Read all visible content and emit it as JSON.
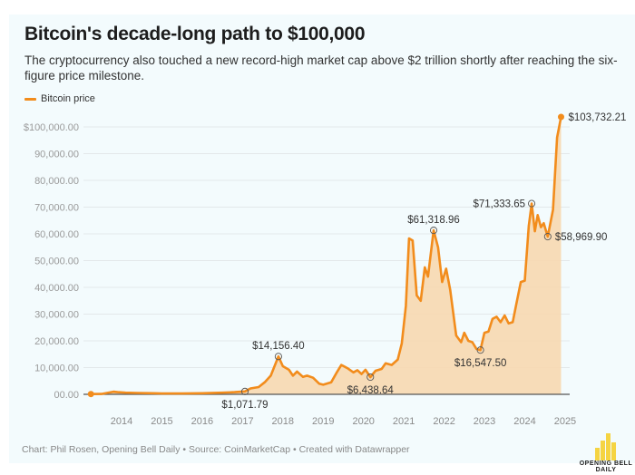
{
  "header": {
    "title": "Bitcoin's decade-long path to $100,000",
    "subtitle": "The cryptocurrency also touched a new record-high market cap above $2 trillion shortly after reaching the six-figure price milestone."
  },
  "legend": {
    "label": "Bitcoin price"
  },
  "footer": {
    "credit": "Chart: Phil Rosen, Opening Bell Daily • Source: CoinMarketCap • Created with Datawrapper",
    "logo_line1": "OPENING BELL",
    "logo_line2": "DAILY"
  },
  "colors": {
    "line": "#f28c1c",
    "fill": "#f7d8b0",
    "logo": "#f5d442"
  },
  "chart_data": {
    "type": "area",
    "title": "Bitcoin's decade-long path to $100,000",
    "xlabel": "",
    "ylabel": "",
    "xlim": [
      2013.2,
      2025.1
    ],
    "ylim": [
      0,
      100000
    ],
    "grid": true,
    "legend_position": "top-left",
    "x_ticks": [
      2014,
      2015,
      2016,
      2017,
      2018,
      2019,
      2020,
      2021,
      2022,
      2023,
      2024,
      2025
    ],
    "x_tick_labels": [
      "2014",
      "2015",
      "2016",
      "2017",
      "2018",
      "2019",
      "2020",
      "2021",
      "2022",
      "2023",
      "2024",
      "2025"
    ],
    "y_ticks": [
      0,
      10000,
      20000,
      30000,
      40000,
      50000,
      60000,
      70000,
      80000,
      90000,
      100000
    ],
    "y_tick_labels": [
      "00.00",
      "10,000.00",
      "20,000.00",
      "30,000.00",
      "40,000.00",
      "50,000.00",
      "60,000.00",
      "70,000.00",
      "80,000.00",
      "90,000.00",
      "$100,000.00"
    ],
    "series": [
      {
        "name": "Bitcoin price",
        "x": [
          2013.24,
          2013.5,
          2013.8,
          2013.9,
          2014.1,
          2014.4,
          2014.8,
          2015.0,
          2015.5,
          2016.0,
          2016.5,
          2016.8,
          2017.06,
          2017.2,
          2017.4,
          2017.55,
          2017.7,
          2017.89,
          2018.0,
          2018.15,
          2018.25,
          2018.35,
          2018.5,
          2018.6,
          2018.75,
          2018.9,
          2019.0,
          2019.2,
          2019.35,
          2019.45,
          2019.6,
          2019.75,
          2019.85,
          2019.95,
          2020.05,
          2020.17,
          2020.3,
          2020.45,
          2020.55,
          2020.7,
          2020.85,
          2020.95,
          2021.05,
          2021.13,
          2021.22,
          2021.32,
          2021.42,
          2021.52,
          2021.6,
          2021.74,
          2021.85,
          2021.95,
          2022.05,
          2022.15,
          2022.3,
          2022.42,
          2022.5,
          2022.6,
          2022.7,
          2022.8,
          2022.9,
          2023.0,
          2023.1,
          2023.2,
          2023.3,
          2023.4,
          2023.5,
          2023.6,
          2023.7,
          2023.8,
          2023.9,
          2024.0,
          2024.1,
          2024.17,
          2024.25,
          2024.32,
          2024.4,
          2024.47,
          2024.57,
          2024.7,
          2024.8,
          2024.9
        ],
        "values": [
          100,
          150,
          1000,
          800,
          600,
          500,
          400,
          300,
          300,
          400,
          600,
          800,
          1071.79,
          2200,
          2700,
          4500,
          7000,
          14156.4,
          10500,
          9200,
          7000,
          8500,
          6500,
          7000,
          6200,
          4000,
          3600,
          4500,
          8500,
          11000,
          9800,
          8200,
          9000,
          7600,
          9200,
          6438.64,
          8800,
          9500,
          11600,
          11000,
          13000,
          19000,
          33000,
          58300,
          57500,
          37000,
          35000,
          47500,
          44000,
          61318.96,
          55000,
          42000,
          47000,
          39000,
          22000,
          19500,
          23000,
          20000,
          19500,
          17000,
          16547.5,
          23000,
          23500,
          28200,
          29000,
          27000,
          29500,
          26500,
          27000,
          34500,
          42000,
          42500,
          63000,
          71333.65,
          61000,
          67000,
          62500,
          64000,
          58969.9,
          69000,
          96000,
          103732.21
        ]
      }
    ],
    "annotations": [
      {
        "x": 2017.06,
        "value": 1071.79,
        "label": "$1,071.79",
        "position": "below"
      },
      {
        "x": 2017.89,
        "value": 14156.4,
        "label": "$14,156.40",
        "position": "above"
      },
      {
        "x": 2020.17,
        "value": 6438.64,
        "label": "$6,438.64",
        "position": "below"
      },
      {
        "x": 2021.74,
        "value": 61318.96,
        "label": "$61,318.96",
        "position": "above"
      },
      {
        "x": 2022.9,
        "value": 16547.5,
        "label": "$16,547.50",
        "position": "below"
      },
      {
        "x": 2024.17,
        "value": 71333.65,
        "label": "$71,333.65",
        "position": "left"
      },
      {
        "x": 2024.57,
        "value": 58969.9,
        "label": "$58,969.90",
        "position": "right"
      },
      {
        "x": 2024.9,
        "value": 103732.21,
        "label": "$103,732.21",
        "position": "right"
      }
    ]
  }
}
